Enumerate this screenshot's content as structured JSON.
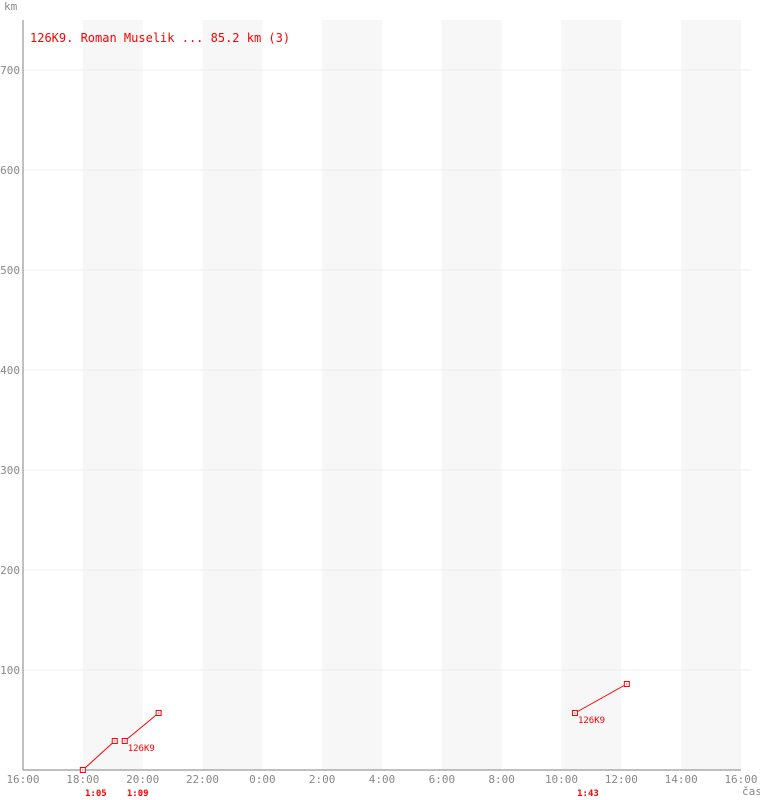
{
  "chart_data": {
    "type": "line",
    "title": "126K9. Roman Muselik ... 85.2 km (3)",
    "xlabel": "čas",
    "ylabel": "km",
    "x_ticks": [
      "16:00",
      "18:00",
      "20:00",
      "22:00",
      "0:00",
      "2:00",
      "4:00",
      "6:00",
      "8:00",
      "10:00",
      "12:00",
      "14:00",
      "16:00"
    ],
    "y_ticks": [
      "100",
      "200",
      "300",
      "400",
      "500",
      "600",
      "700"
    ],
    "xlim": [
      "16:00",
      "16:00 (+1 day)"
    ],
    "ylim": [
      0,
      750
    ],
    "grid": true,
    "series": [
      {
        "points": [
          {
            "time": "18:00",
            "km": 0
          },
          {
            "time": "19:04",
            "km": 29
          }
        ],
        "duration": "1:05",
        "label": ""
      },
      {
        "points": [
          {
            "time": "19:24",
            "km": 29
          },
          {
            "time": "20:32",
            "km": 57
          }
        ],
        "duration": "1:09",
        "label": "126K9"
      },
      {
        "points": [
          {
            "time": "10:27",
            "km": 57
          },
          {
            "time": "12:11",
            "km": 86
          }
        ],
        "duration": "1:43",
        "label": "126K9"
      }
    ],
    "colors": {
      "series": "#ff0000",
      "axis": "#808080",
      "grid": "#eeeeee",
      "band": "#f7f7f7",
      "ticks": "#888888"
    }
  }
}
